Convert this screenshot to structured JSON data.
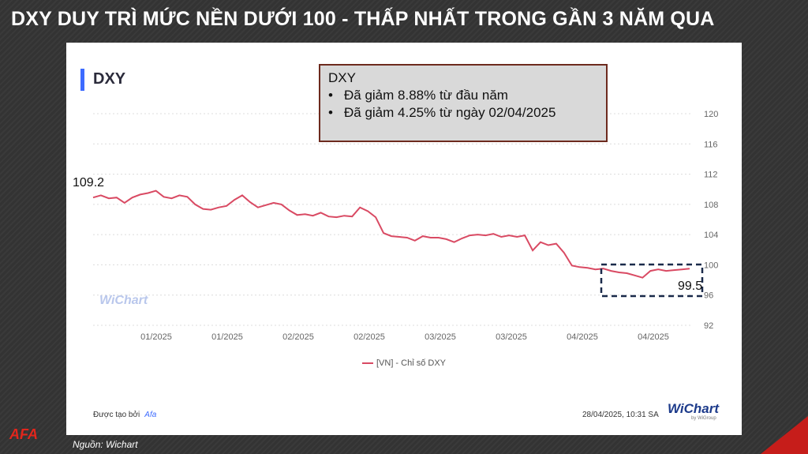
{
  "headline": "DXY DUY TRÌ MỨC NỀN DƯỚI 100 - THẤP NHẤT TRONG GẦN 3 NĂM QUA",
  "card": {
    "series_title": "DXY",
    "note": {
      "title": "DXY",
      "bullets": [
        "Đã giảm 8.88% từ đầu năm",
        "Đã giảm 4.25% từ ngày 02/04/2025"
      ]
    },
    "watermark": "WiChart",
    "legend": "[VN] - Chỉ số DXY",
    "footer_left": "Được tạo bởi",
    "footer_by": "Afa",
    "footer_right": "28/04/2025, 10:31 SA",
    "brand": "WiChart",
    "brand_sub": "by WiGroup"
  },
  "logo": "AFA",
  "source": "Nguồn: Wichart",
  "colors": {
    "line": "#d94a63",
    "accent": "#3d6bff",
    "box": "#1a2a4a"
  },
  "chart_data": {
    "type": "line",
    "ylim": [
      92,
      120
    ],
    "yticks": [
      92,
      96,
      100,
      104,
      108,
      112,
      116,
      120
    ],
    "xtick_labels": [
      "01/2025",
      "01/2025",
      "02/2025",
      "02/2025",
      "03/2025",
      "03/2025",
      "04/2025",
      "04/2025"
    ],
    "series": [
      {
        "name": "[VN] - Chỉ số DXY",
        "values": [
          108.9,
          109.2,
          108.8,
          108.9,
          108.2,
          108.9,
          109.3,
          109.5,
          109.8,
          109.0,
          108.8,
          109.2,
          109.0,
          108.0,
          107.4,
          107.3,
          107.6,
          107.8,
          108.6,
          109.2,
          108.3,
          107.6,
          107.9,
          108.2,
          108.0,
          107.2,
          106.6,
          106.7,
          106.5,
          106.9,
          106.4,
          106.3,
          106.5,
          106.4,
          107.6,
          107.1,
          106.3,
          104.2,
          103.8,
          103.7,
          103.6,
          103.2,
          103.8,
          103.6,
          103.6,
          103.4,
          103.0,
          103.5,
          103.9,
          104.0,
          103.9,
          104.1,
          103.7,
          103.9,
          103.7,
          103.9,
          101.9,
          103.0,
          102.6,
          102.8,
          101.6,
          99.9,
          99.7,
          99.6,
          99.4,
          99.5,
          99.2,
          99.0,
          98.9,
          98.6,
          98.3,
          99.2,
          99.4,
          99.2,
          99.3,
          99.4,
          99.5
        ]
      }
    ],
    "labels": {
      "start": "109.2",
      "end": "99.5"
    }
  }
}
